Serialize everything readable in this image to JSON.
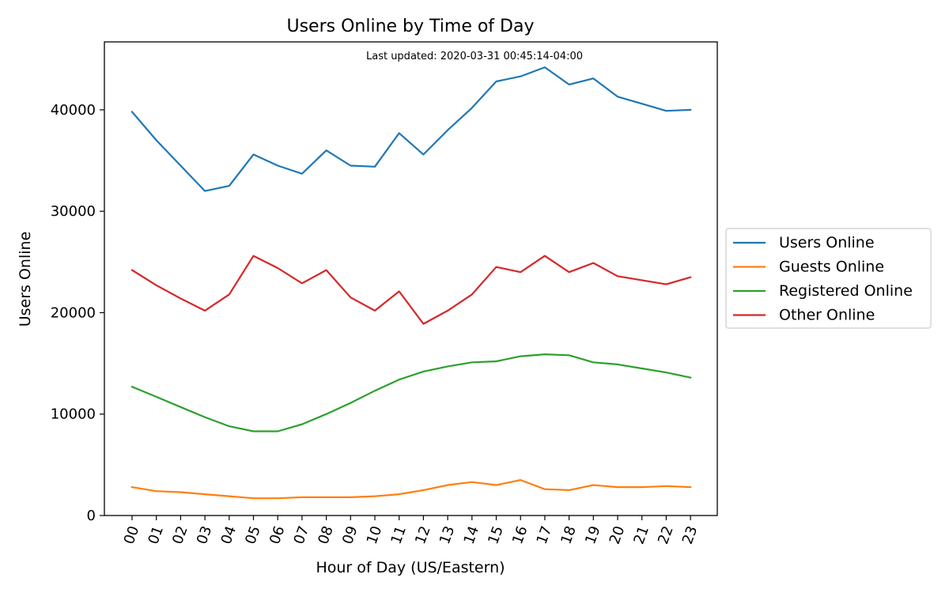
{
  "chart_data": {
    "type": "line",
    "title": "Users Online by Time of Day",
    "annotation": "Last updated: 2020-03-31 00:45:14-04:00",
    "xlabel": "Hour of Day (US/Eastern)",
    "ylabel": "Users Online",
    "categories": [
      "00",
      "01",
      "02",
      "03",
      "04",
      "05",
      "06",
      "07",
      "08",
      "09",
      "10",
      "11",
      "12",
      "13",
      "14",
      "15",
      "16",
      "17",
      "18",
      "19",
      "20",
      "21",
      "22",
      "23"
    ],
    "ylim": [
      0,
      46700
    ],
    "yticks": [
      0,
      10000,
      20000,
      30000,
      40000
    ],
    "grid": false,
    "legend_position": "right",
    "series": [
      {
        "name": "Users Online",
        "color": "#1f77b4",
        "values": [
          39800,
          37000,
          34500,
          32000,
          32500,
          35600,
          34500,
          33700,
          36000,
          34500,
          34400,
          37700,
          35600,
          38000,
          40200,
          42800,
          43300,
          44200,
          42500,
          43100,
          41300,
          40600,
          39900,
          40000
        ]
      },
      {
        "name": "Guests Online",
        "color": "#ff7f0e",
        "values": [
          2800,
          2400,
          2300,
          2100,
          1900,
          1700,
          1700,
          1800,
          1800,
          1800,
          1900,
          2100,
          2500,
          3000,
          3300,
          3000,
          3500,
          2600,
          2500,
          3000,
          2800,
          2800,
          2900,
          2800
        ]
      },
      {
        "name": "Registered Online",
        "color": "#2ca02c",
        "values": [
          12700,
          11700,
          10700,
          9700,
          8800,
          8300,
          8300,
          9000,
          10000,
          11100,
          12300,
          13400,
          14200,
          14700,
          15100,
          15200,
          15700,
          15900,
          15800,
          15100,
          14900,
          14500,
          14100,
          13600
        ]
      },
      {
        "name": "Other Online",
        "color": "#d62728",
        "values": [
          24200,
          22700,
          21400,
          20200,
          21800,
          25600,
          24400,
          22900,
          24200,
          21500,
          20200,
          22100,
          18900,
          20200,
          21800,
          24500,
          24000,
          25600,
          24000,
          24900,
          23600,
          23200,
          22800,
          23500
        ]
      }
    ]
  }
}
